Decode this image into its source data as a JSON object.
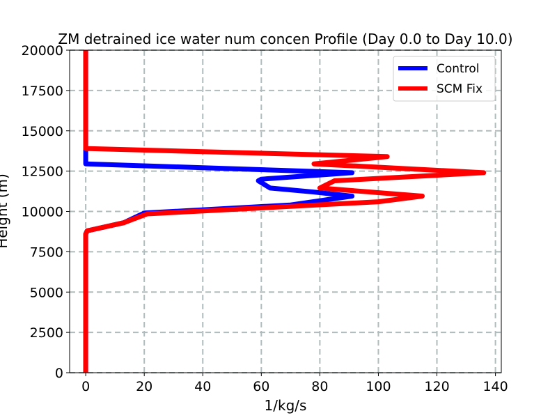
{
  "chart_data": {
    "type": "line",
    "title": "ZM detrained ice water num concen Profile (Day 0.0 to Day 10.0)",
    "xlabel": "1/kg/s",
    "ylabel": "Height (m)",
    "xlim": [
      -5.5,
      142
    ],
    "ylim": [
      0,
      20000
    ],
    "xticks": [
      0,
      20,
      40,
      60,
      80,
      100,
      120,
      140
    ],
    "yticks": [
      0,
      2500,
      5000,
      7500,
      10000,
      12500,
      15000,
      17500,
      20000
    ],
    "grid": true,
    "legend_position": "top-right",
    "series": [
      {
        "name": "Control",
        "color": "#0000ff",
        "x": [
          0,
          0,
          0,
          0,
          0,
          0.5,
          13,
          20,
          70,
          91,
          78,
          63,
          59,
          60,
          91,
          0,
          0,
          0,
          0
        ],
        "y": [
          0,
          2500,
          5000,
          7500,
          8600,
          8800,
          9300,
          9900,
          10400,
          10950,
          11200,
          11450,
          11900,
          12000,
          12400,
          12950,
          13600,
          16000,
          20000
        ]
      },
      {
        "name": "SCM Fix",
        "color": "#ff0000",
        "x": [
          0,
          0,
          0,
          0,
          0,
          0.5,
          13,
          21,
          100,
          115,
          80,
          85,
          136,
          78,
          103,
          0,
          0,
          0
        ],
        "y": [
          0,
          2500,
          5000,
          7500,
          8600,
          8800,
          9300,
          9850,
          10600,
          10950,
          11450,
          11900,
          12400,
          12950,
          13400,
          13900,
          16000,
          20000
        ]
      }
    ]
  }
}
